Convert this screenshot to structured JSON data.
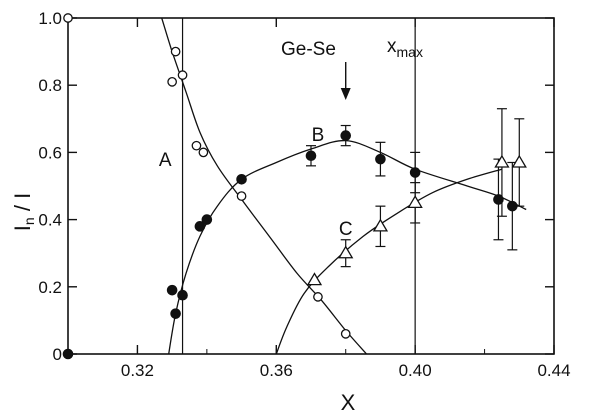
{
  "chart_data": {
    "type": "scatter",
    "title": "",
    "xlabel": "X",
    "ylabel": "I_n / I",
    "xlim": [
      0.3,
      0.44
    ],
    "ylim": [
      0.0,
      1.0
    ],
    "grid": false,
    "x_ticks": [
      0.32,
      0.36,
      0.4,
      0.44
    ],
    "x_tick_labels": [
      "0.32",
      "0.36",
      "0.40",
      "0.44"
    ],
    "y_ticks": [
      0.0,
      0.2,
      0.4,
      0.6,
      0.8,
      1.0
    ],
    "y_tick_labels": [
      "0",
      "0.2",
      "0.4",
      "0.6",
      "0.8",
      "1.0"
    ],
    "vertical_lines_x": [
      0.333,
      0.4
    ],
    "annotations": {
      "system": "Ge-Se",
      "xmax_label": "x",
      "xmax_subscript": "max",
      "xmax_x": 0.38
    },
    "series": [
      {
        "name": "A",
        "marker": "open-circle",
        "points": [
          {
            "x": 0.3,
            "y": 1.0
          },
          {
            "x": 0.331,
            "y": 0.9
          },
          {
            "x": 0.33,
            "y": 0.81
          },
          {
            "x": 0.333,
            "y": 0.83
          },
          {
            "x": 0.337,
            "y": 0.62
          },
          {
            "x": 0.339,
            "y": 0.6
          },
          {
            "x": 0.35,
            "y": 0.47
          },
          {
            "x": 0.372,
            "y": 0.17
          },
          {
            "x": 0.38,
            "y": 0.06
          }
        ],
        "curve": [
          [
            0.327,
            1.0
          ],
          [
            0.33,
            0.9
          ],
          [
            0.334,
            0.78
          ],
          [
            0.338,
            0.66
          ],
          [
            0.343,
            0.56
          ],
          [
            0.35,
            0.46
          ],
          [
            0.358,
            0.35
          ],
          [
            0.366,
            0.24
          ],
          [
            0.373,
            0.16
          ],
          [
            0.38,
            0.07
          ],
          [
            0.386,
            0.0
          ]
        ]
      },
      {
        "name": "B",
        "marker": "filled-circle",
        "points": [
          {
            "x": 0.3,
            "y": 0.0,
            "err": null
          },
          {
            "x": 0.33,
            "y": 0.19,
            "err": null
          },
          {
            "x": 0.331,
            "y": 0.12,
            "err": null
          },
          {
            "x": 0.333,
            "y": 0.175,
            "err": null
          },
          {
            "x": 0.338,
            "y": 0.38,
            "err": null
          },
          {
            "x": 0.34,
            "y": 0.4,
            "err": null
          },
          {
            "x": 0.35,
            "y": 0.52,
            "err": null
          },
          {
            "x": 0.37,
            "y": 0.59,
            "err": 0.03
          },
          {
            "x": 0.38,
            "y": 0.65,
            "err": 0.03
          },
          {
            "x": 0.39,
            "y": 0.58,
            "err": 0.05
          },
          {
            "x": 0.4,
            "y": 0.54,
            "err": 0.06
          },
          {
            "x": 0.424,
            "y": 0.46,
            "err": 0.12
          },
          {
            "x": 0.428,
            "y": 0.44,
            "err": 0.13
          }
        ],
        "curve": [
          [
            0.329,
            0.0
          ],
          [
            0.331,
            0.12
          ],
          [
            0.334,
            0.24
          ],
          [
            0.338,
            0.35
          ],
          [
            0.343,
            0.44
          ],
          [
            0.35,
            0.52
          ],
          [
            0.36,
            0.57
          ],
          [
            0.37,
            0.61
          ],
          [
            0.38,
            0.635
          ],
          [
            0.39,
            0.6
          ],
          [
            0.4,
            0.55
          ],
          [
            0.415,
            0.5
          ],
          [
            0.424,
            0.47
          ],
          [
            0.432,
            0.43
          ]
        ]
      },
      {
        "name": "C",
        "marker": "open-triangle",
        "points": [
          {
            "x": 0.371,
            "y": 0.22,
            "err": null
          },
          {
            "x": 0.38,
            "y": 0.3,
            "err": 0.04
          },
          {
            "x": 0.39,
            "y": 0.38,
            "err": 0.06
          },
          {
            "x": 0.4,
            "y": 0.45,
            "err": 0.06
          },
          {
            "x": 0.425,
            "y": 0.57,
            "err": 0.16
          },
          {
            "x": 0.43,
            "y": 0.57,
            "err": 0.13
          }
        ],
        "curve": [
          [
            0.36,
            0.0
          ],
          [
            0.363,
            0.08
          ],
          [
            0.368,
            0.18
          ],
          [
            0.375,
            0.26
          ],
          [
            0.385,
            0.35
          ],
          [
            0.395,
            0.42
          ],
          [
            0.405,
            0.48
          ],
          [
            0.415,
            0.52
          ],
          [
            0.425,
            0.55
          ]
        ]
      }
    ]
  }
}
